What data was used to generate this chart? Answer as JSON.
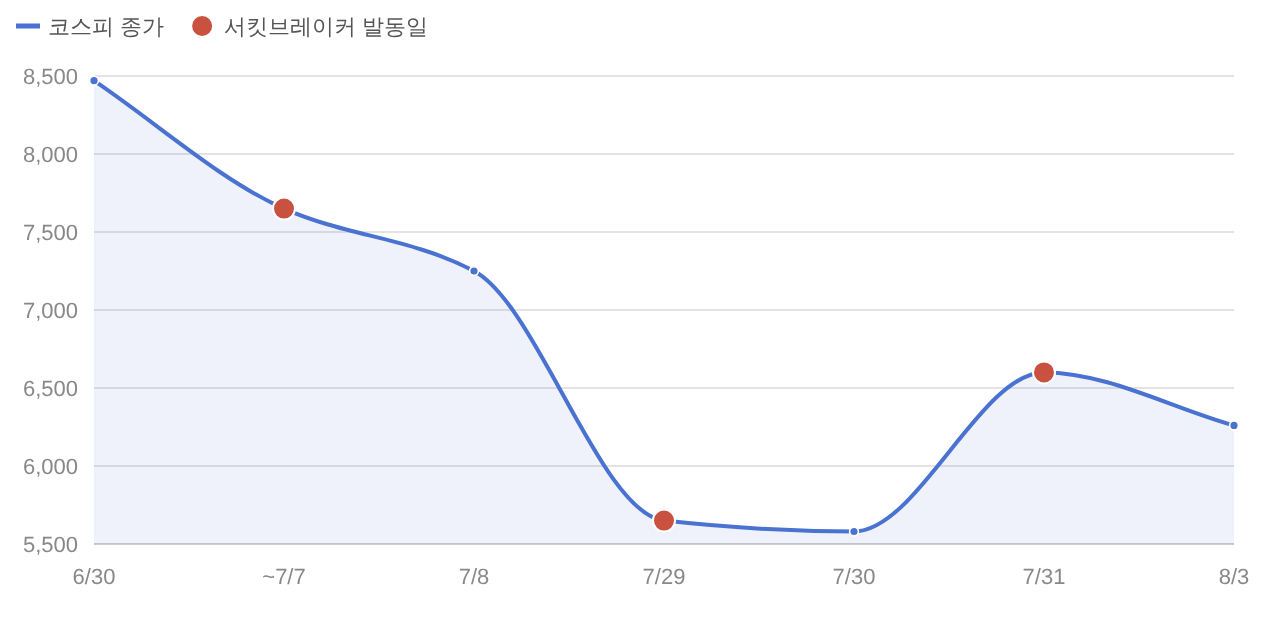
{
  "chart_data": {
    "type": "area",
    "categories": [
      "6/30",
      "~7/7",
      "7/8",
      "7/29",
      "7/30",
      "7/31",
      "8/3"
    ],
    "series": [
      {
        "name": "코스피 종가",
        "color": "#4a72d0",
        "marker": "circle",
        "values": [
          8470,
          7650,
          7250,
          5650,
          5580,
          6600,
          6260
        ]
      },
      {
        "name": "서킷브레이커 발동일",
        "type": "scatter",
        "color": "#c8513f",
        "x": [
          "~7/7",
          "7/29",
          "7/31"
        ],
        "values": [
          7650,
          5650,
          6600
        ]
      }
    ],
    "ylim": [
      5500,
      8500
    ],
    "yticks": [
      {
        "value": 5500,
        "label": "5,500"
      },
      {
        "value": 6000,
        "label": "6,000"
      },
      {
        "value": 6500,
        "label": "6,500"
      },
      {
        "value": 7000,
        "label": "7,000"
      },
      {
        "value": 7500,
        "label": "7,500"
      },
      {
        "value": 8000,
        "label": "8,000"
      },
      {
        "value": 8500,
        "label": "8,500"
      }
    ],
    "grid": "y",
    "legend": "top left"
  }
}
